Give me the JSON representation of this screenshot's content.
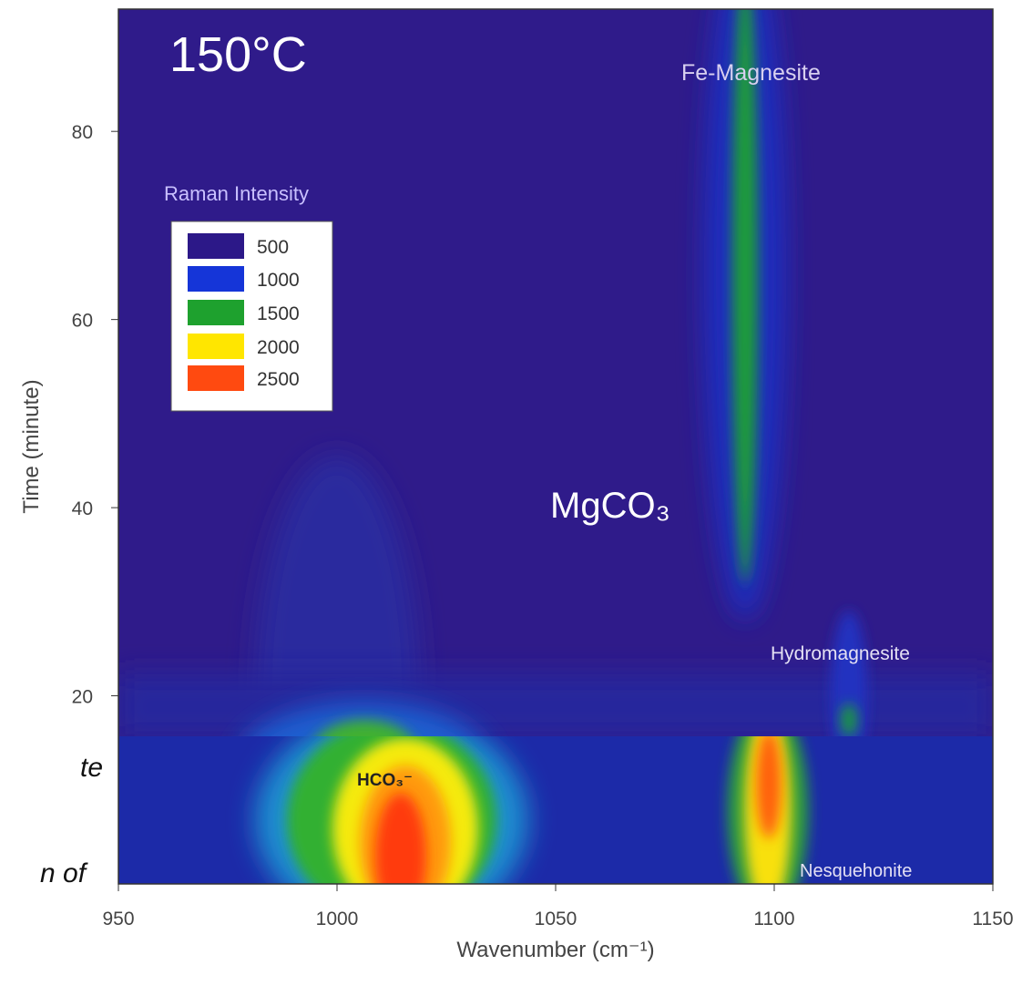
{
  "chart_data": {
    "type": "contour",
    "x_label": "Wavenumber (cm⁻¹)",
    "y_label": "Time (minute)",
    "xlim": [
      950,
      1150
    ],
    "ylim": [
      0,
      93
    ],
    "xticks": [
      950,
      1000,
      1050,
      1100,
      1150
    ],
    "yticks": [
      20,
      40,
      60,
      80
    ],
    "legend": {
      "title": "Raman Intensity",
      "levels": [
        500,
        1000,
        1500,
        2000,
        2500
      ],
      "colors": [
        "#2c1888",
        "#1535d8",
        "#1ea12e",
        "#ffe600",
        "#ff4a10"
      ]
    },
    "annotations": [
      "150°C",
      "Fe-Magnesite",
      "MgCO₃",
      "Hydromagnesite",
      "HCO₃⁻",
      "Nesquehonite"
    ],
    "fragments": [
      "te",
      "n of"
    ]
  }
}
